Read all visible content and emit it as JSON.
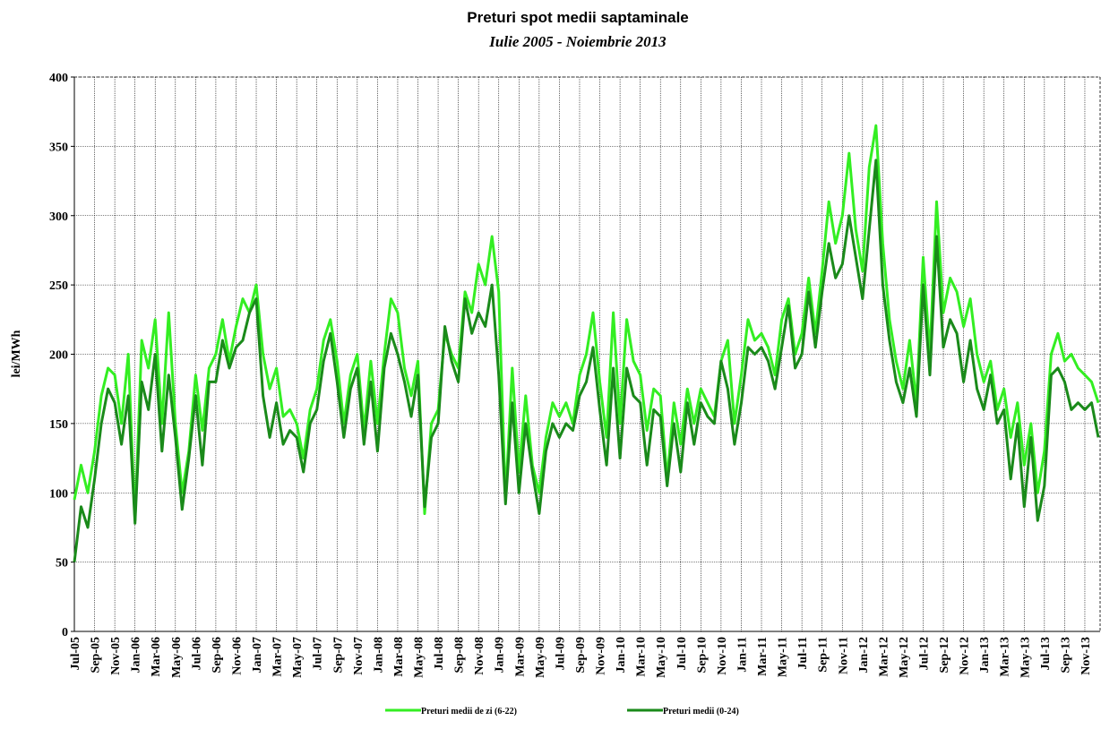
{
  "chart_data": {
    "type": "line",
    "title": "Preturi spot medii saptaminale",
    "subtitle": "Iulie 2005 - Noiembrie 2013",
    "y_label": "lei/MWh",
    "categories": [
      "Jul-05",
      null,
      null,
      "Sep-05",
      null,
      null,
      "Nov-05",
      null,
      null,
      "Jan-06",
      null,
      null,
      "Mar-06",
      null,
      null,
      "May-06",
      null,
      null,
      "Jul-06",
      null,
      null,
      "Sep-06",
      null,
      null,
      "Nov-06",
      null,
      null,
      "Jan-07",
      null,
      null,
      "Mar-07",
      null,
      null,
      "May-07",
      null,
      null,
      "Jul-07",
      null,
      null,
      "Sep-07",
      null,
      null,
      "Nov-07",
      null,
      null,
      "Jan-08",
      null,
      null,
      "Mar-08",
      null,
      null,
      "May-08",
      null,
      null,
      "Jul-08",
      null,
      null,
      "Sep-08",
      null,
      null,
      "Nov-08",
      null,
      null,
      "Jan-09",
      null,
      null,
      "Mar-09",
      null,
      null,
      "May-09",
      null,
      null,
      "Jul-09",
      null,
      null,
      "Sep-09",
      null,
      null,
      "Nov-09",
      null,
      null,
      "Jan-10",
      null,
      null,
      "Mar-10",
      null,
      null,
      "May-10",
      null,
      null,
      "Jul-10",
      null,
      null,
      "Sep-10",
      null,
      null,
      "Nov-10",
      null,
      null,
      "Jan-11",
      null,
      null,
      "Mar-11",
      null,
      null,
      "May-11",
      null,
      null,
      "Jul-11",
      null,
      null,
      "Sep-11",
      null,
      null,
      "Nov-11",
      null,
      null,
      "Jan-12",
      null,
      null,
      "Mar-12",
      null,
      null,
      "May-12",
      null,
      null,
      "Jul-12",
      null,
      null,
      "Sep-12",
      null,
      null,
      "Nov-12",
      null,
      null,
      "Jan-13",
      null,
      null,
      "Mar-13",
      null,
      null,
      "May-13",
      null,
      null,
      "Jul-13",
      null,
      null,
      "Sep-13",
      null,
      null,
      "Nov-13",
      null,
      null
    ],
    "series": [
      {
        "name": "Preturi medii de zi (6-22)",
        "color": "#33ee22",
        "values": [
          95,
          120,
          100,
          130,
          170,
          190,
          185,
          150,
          200,
          80,
          210,
          190,
          225,
          150,
          230,
          150,
          100,
          130,
          185,
          145,
          190,
          200,
          225,
          195,
          220,
          240,
          230,
          250,
          200,
          175,
          190,
          155,
          160,
          150,
          125,
          160,
          175,
          210,
          225,
          195,
          150,
          185,
          200,
          145,
          195,
          150,
          200,
          240,
          230,
          190,
          170,
          195,
          85,
          150,
          160,
          215,
          200,
          190,
          245,
          230,
          265,
          250,
          285,
          245,
          95,
          190,
          115,
          170,
          120,
          100,
          140,
          165,
          155,
          165,
          150,
          185,
          200,
          230,
          180,
          140,
          230,
          150,
          225,
          195,
          185,
          145,
          175,
          170,
          110,
          165,
          135,
          175,
          150,
          175,
          165,
          155,
          195,
          210,
          150,
          185,
          225,
          210,
          215,
          205,
          185,
          225,
          240,
          200,
          215,
          255,
          215,
          260,
          310,
          280,
          300,
          345,
          290,
          260,
          335,
          365,
          280,
          225,
          195,
          175,
          210,
          165,
          270,
          200,
          310,
          230,
          255,
          245,
          220,
          240,
          200,
          180,
          195,
          160,
          175,
          140,
          165,
          120,
          150,
          100,
          130,
          200,
          215,
          195,
          200,
          190,
          185,
          180,
          165
        ]
      },
      {
        "name": "Preturi medii (0-24)",
        "color": "#1a8a1a",
        "values": [
          50,
          90,
          75,
          110,
          150,
          175,
          165,
          135,
          170,
          78,
          180,
          160,
          200,
          130,
          185,
          140,
          88,
          125,
          170,
          120,
          180,
          180,
          210,
          190,
          205,
          210,
          230,
          240,
          170,
          140,
          165,
          135,
          145,
          140,
          115,
          150,
          160,
          195,
          215,
          180,
          140,
          175,
          190,
          135,
          180,
          130,
          190,
          215,
          200,
          180,
          155,
          185,
          90,
          140,
          150,
          220,
          195,
          180,
          240,
          215,
          230,
          220,
          250,
          185,
          92,
          165,
          100,
          150,
          115,
          85,
          130,
          150,
          140,
          150,
          145,
          170,
          180,
          205,
          160,
          120,
          190,
          125,
          190,
          170,
          165,
          120,
          160,
          155,
          105,
          150,
          115,
          165,
          135,
          165,
          155,
          150,
          195,
          175,
          135,
          165,
          205,
          200,
          205,
          195,
          175,
          205,
          235,
          190,
          200,
          245,
          205,
          245,
          280,
          255,
          265,
          300,
          270,
          240,
          290,
          340,
          250,
          210,
          180,
          165,
          190,
          155,
          250,
          185,
          285,
          205,
          225,
          215,
          180,
          210,
          175,
          160,
          185,
          150,
          160,
          110,
          150,
          90,
          140,
          80,
          105,
          185,
          190,
          180,
          160,
          165,
          160,
          165,
          140
        ]
      }
    ],
    "ylim": [
      0,
      400
    ],
    "yticks": [
      0,
      50,
      100,
      150,
      200,
      250,
      300,
      350,
      400
    ],
    "grid": true
  }
}
